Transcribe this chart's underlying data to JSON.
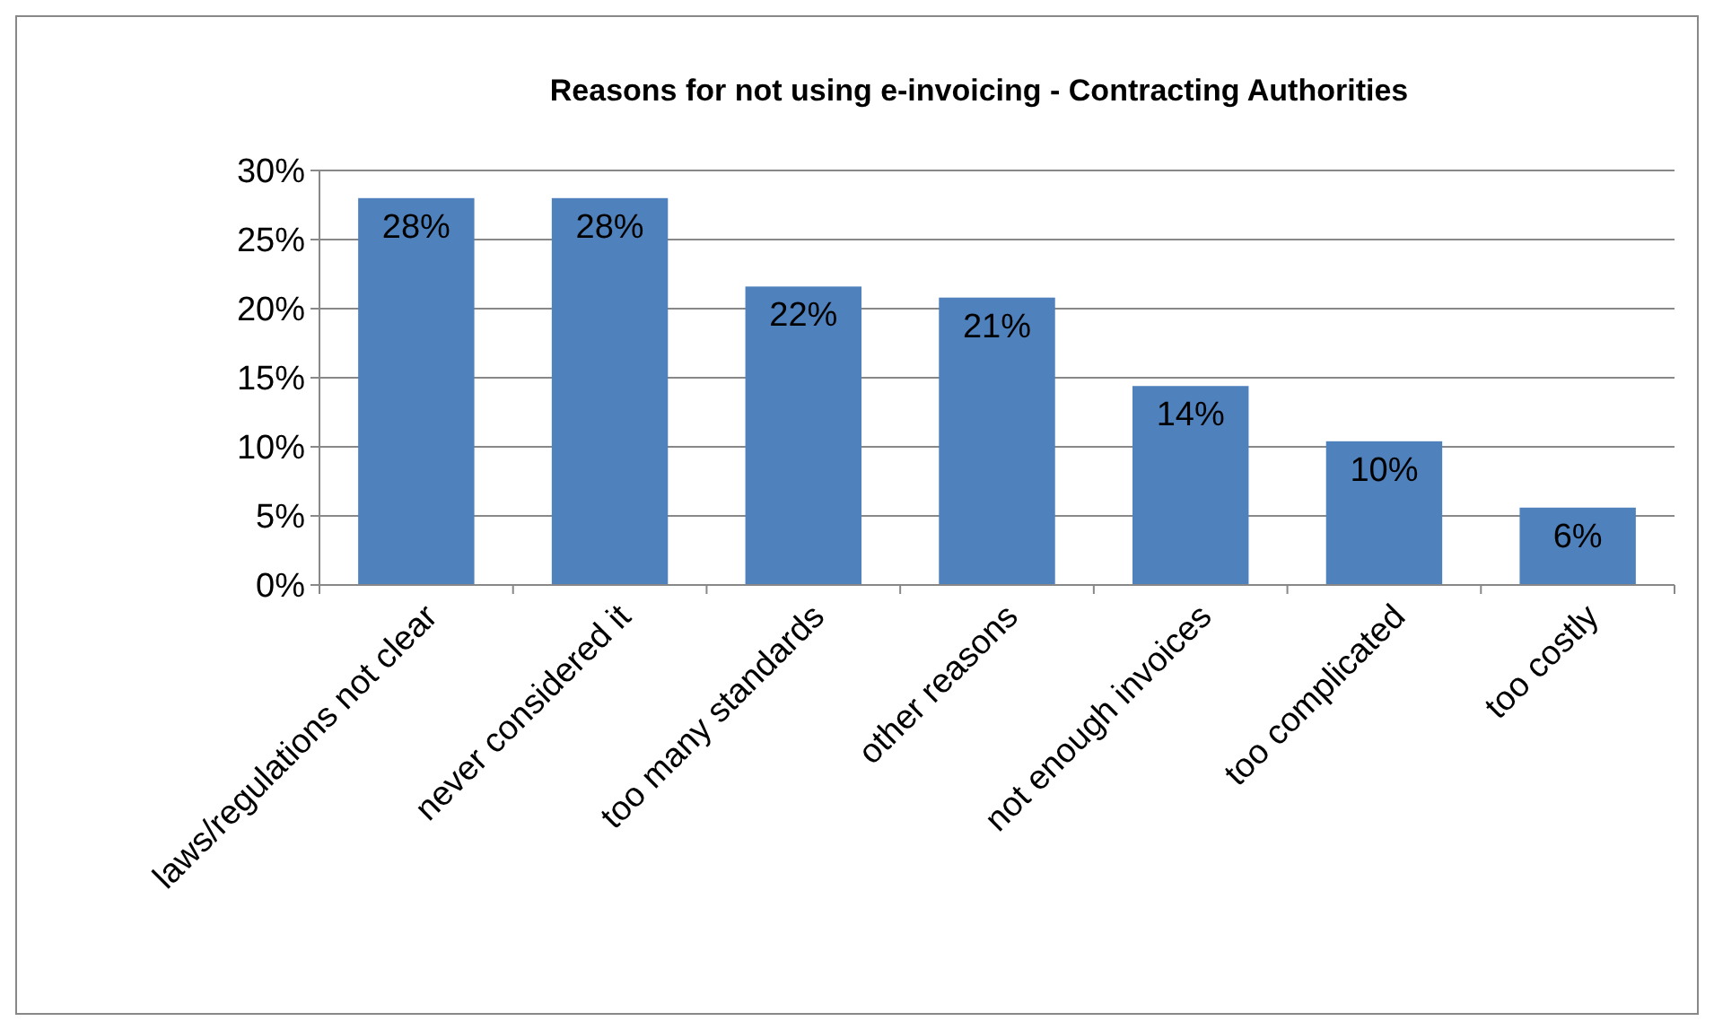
{
  "chart_data": {
    "type": "bar",
    "title": "Reasons for not using e-invoicing - Contracting Authorities",
    "categories": [
      "laws/regulations not clear",
      "never considered it",
      "too many standards",
      "other reasons",
      "not enough invoices",
      "too complicated",
      "too costly"
    ],
    "values": [
      28,
      28,
      21.6,
      20.8,
      14.4,
      10.4,
      5.6
    ],
    "value_labels": [
      "28%",
      "28%",
      "22%",
      "21%",
      "14%",
      "10%",
      "6%"
    ],
    "color": "#4f81bd",
    "ylim": [
      0,
      30
    ],
    "yticks": [
      {
        "value": 0,
        "label": "0%"
      },
      {
        "value": 5,
        "label": "5%"
      },
      {
        "value": 10,
        "label": "10%"
      },
      {
        "value": 15,
        "label": "15%"
      },
      {
        "value": 20,
        "label": "20%"
      },
      {
        "value": 25,
        "label": "25%"
      },
      {
        "value": 30,
        "label": "30%"
      }
    ],
    "grid": "y"
  }
}
